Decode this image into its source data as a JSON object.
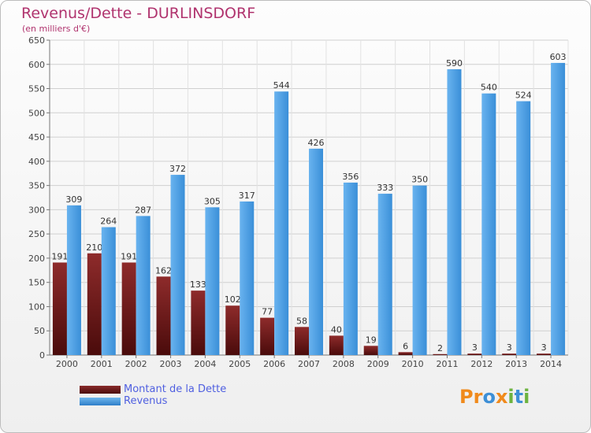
{
  "title": "Revenus/Dette - DURLINSDORF",
  "subtitle": "(en milliers d'€)",
  "legend": {
    "debt": "Montant de la Dette",
    "revenue": "Revenus"
  },
  "logo": "Proxiti",
  "colors": {
    "debt": "#7a1c1c",
    "revenue": "#4da6e8",
    "title": "#b0336e",
    "legend_text": "#4f5fe0"
  },
  "chart_data": {
    "type": "bar",
    "title": "Revenus/Dette - DURLINSDORF",
    "ylabel": "(en milliers d'€)",
    "categories": [
      "2000",
      "2001",
      "2002",
      "2003",
      "2004",
      "2005",
      "2006",
      "2007",
      "2008",
      "2009",
      "2010",
      "2011",
      "2012",
      "2013",
      "2014"
    ],
    "series": [
      {
        "name": "Montant de la Dette",
        "values": [
          191,
          210,
          191,
          162,
          133,
          102,
          77,
          58,
          40,
          19,
          6,
          2,
          3,
          3,
          3
        ]
      },
      {
        "name": "Revenus",
        "values": [
          309,
          264,
          287,
          372,
          305,
          317,
          544,
          426,
          356,
          333,
          350,
          590,
          540,
          524,
          603
        ]
      }
    ],
    "ylim": [
      0,
      650
    ],
    "yticks": [
      0,
      50,
      100,
      150,
      200,
      250,
      300,
      350,
      400,
      450,
      500,
      550,
      600,
      650
    ],
    "grid": true,
    "legend_position": "bottom-left"
  }
}
